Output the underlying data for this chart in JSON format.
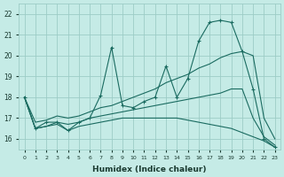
{
  "xlabel": "Humidex (Indice chaleur)",
  "ylabel": "",
  "background_color": "#c5ebe6",
  "grid_color": "#9dccc6",
  "line_color": "#1a6b60",
  "xlim": [
    -0.5,
    23.5
  ],
  "ylim": [
    15.5,
    22.5
  ],
  "xtick_labels": [
    "0",
    "1",
    "2",
    "3",
    "4",
    "5",
    "6",
    "7",
    "8",
    "9",
    "10",
    "11",
    "12",
    "13",
    "14",
    "15",
    "16",
    "17",
    "18",
    "19",
    "20",
    "21",
    "22",
    "23"
  ],
  "ytick_values": [
    16,
    17,
    18,
    19,
    20,
    21,
    22
  ],
  "series": [
    {
      "x": [
        0,
        1,
        2,
        3,
        4,
        5,
        6,
        7,
        8,
        9,
        10,
        11,
        12,
        13,
        14,
        15,
        16,
        17,
        18,
        19,
        20,
        21,
        22,
        23
      ],
      "y": [
        18.0,
        16.5,
        16.8,
        16.8,
        16.4,
        16.8,
        17.0,
        18.1,
        20.4,
        17.6,
        17.5,
        17.8,
        18.0,
        19.5,
        18.0,
        18.9,
        20.7,
        21.6,
        21.7,
        21.6,
        20.2,
        18.4,
        16.0,
        15.6
      ],
      "marker": "+"
    },
    {
      "x": [
        0,
        1,
        2,
        3,
        4,
        5,
        6,
        7,
        8,
        9,
        10,
        11,
        12,
        13,
        14,
        15,
        16,
        17,
        18,
        19,
        20,
        21,
        22,
        23
      ],
      "y": [
        18.0,
        16.8,
        16.9,
        17.1,
        17.0,
        17.1,
        17.3,
        17.5,
        17.6,
        17.8,
        18.0,
        18.2,
        18.4,
        18.7,
        18.9,
        19.1,
        19.4,
        19.6,
        19.9,
        20.1,
        20.2,
        20.0,
        17.0,
        16.0
      ],
      "marker": null
    },
    {
      "x": [
        0,
        1,
        2,
        3,
        4,
        5,
        6,
        7,
        8,
        9,
        10,
        11,
        12,
        13,
        14,
        15,
        16,
        17,
        18,
        19,
        20,
        21,
        22,
        23
      ],
      "y": [
        18.0,
        16.5,
        16.6,
        16.8,
        16.7,
        16.8,
        17.0,
        17.1,
        17.2,
        17.3,
        17.4,
        17.5,
        17.6,
        17.7,
        17.8,
        17.9,
        18.0,
        18.1,
        18.2,
        18.4,
        18.4,
        17.0,
        16.1,
        15.7
      ],
      "marker": null
    },
    {
      "x": [
        0,
        1,
        2,
        3,
        4,
        5,
        6,
        7,
        8,
        9,
        10,
        11,
        12,
        13,
        14,
        15,
        16,
        17,
        18,
        19,
        20,
        21,
        22,
        23
      ],
      "y": [
        18.0,
        16.5,
        16.6,
        16.7,
        16.4,
        16.6,
        16.7,
        16.8,
        16.9,
        17.0,
        17.0,
        17.0,
        17.0,
        17.0,
        17.0,
        16.9,
        16.8,
        16.7,
        16.6,
        16.5,
        16.3,
        16.1,
        15.9,
        15.6
      ],
      "marker": null
    }
  ]
}
